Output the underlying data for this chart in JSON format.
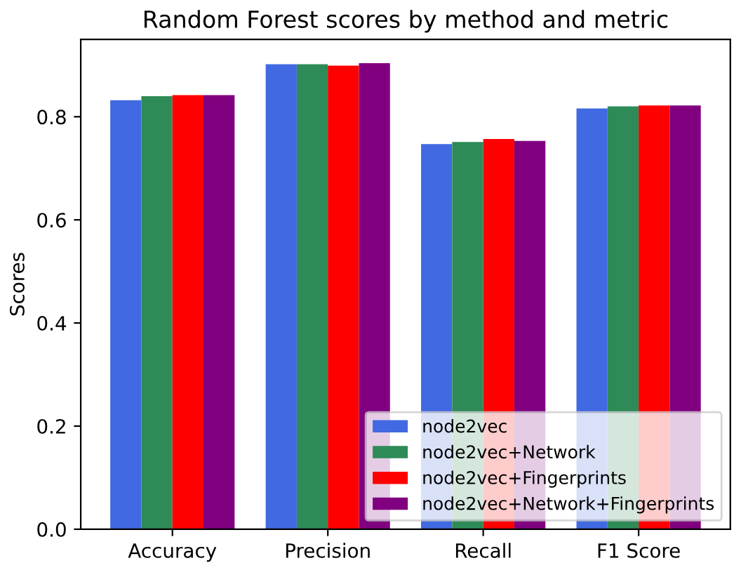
{
  "chart_data": {
    "type": "bar",
    "title": "Random Forest scores by method and metric",
    "ylabel": "Scores",
    "categories": [
      "Accuracy",
      "Precision",
      "Recall",
      "F1 Score"
    ],
    "series": [
      {
        "name": "node2vec",
        "color": "#4169e1",
        "values": [
          0.832,
          0.902,
          0.747,
          0.816
        ]
      },
      {
        "name": "node2vec+Network",
        "color": "#2e8b57",
        "values": [
          0.84,
          0.902,
          0.751,
          0.82
        ]
      },
      {
        "name": "node2vec+Fingerprints",
        "color": "#ff0000",
        "values": [
          0.842,
          0.899,
          0.757,
          0.822
        ]
      },
      {
        "name": "node2vec+Network+Fingerprints",
        "color": "#800080",
        "values": [
          0.842,
          0.904,
          0.753,
          0.822
        ]
      }
    ],
    "ylim": [
      0,
      0.95
    ],
    "yticks": [
      {
        "value": 0,
        "label": "0.0"
      },
      {
        "value": 0.2,
        "label": "0.2"
      },
      {
        "value": 0.4,
        "label": "0.4"
      },
      {
        "value": 0.6,
        "label": "0.6"
      },
      {
        "value": 0.8,
        "label": "0.8"
      }
    ],
    "grid": false,
    "legend": "bottom right"
  }
}
